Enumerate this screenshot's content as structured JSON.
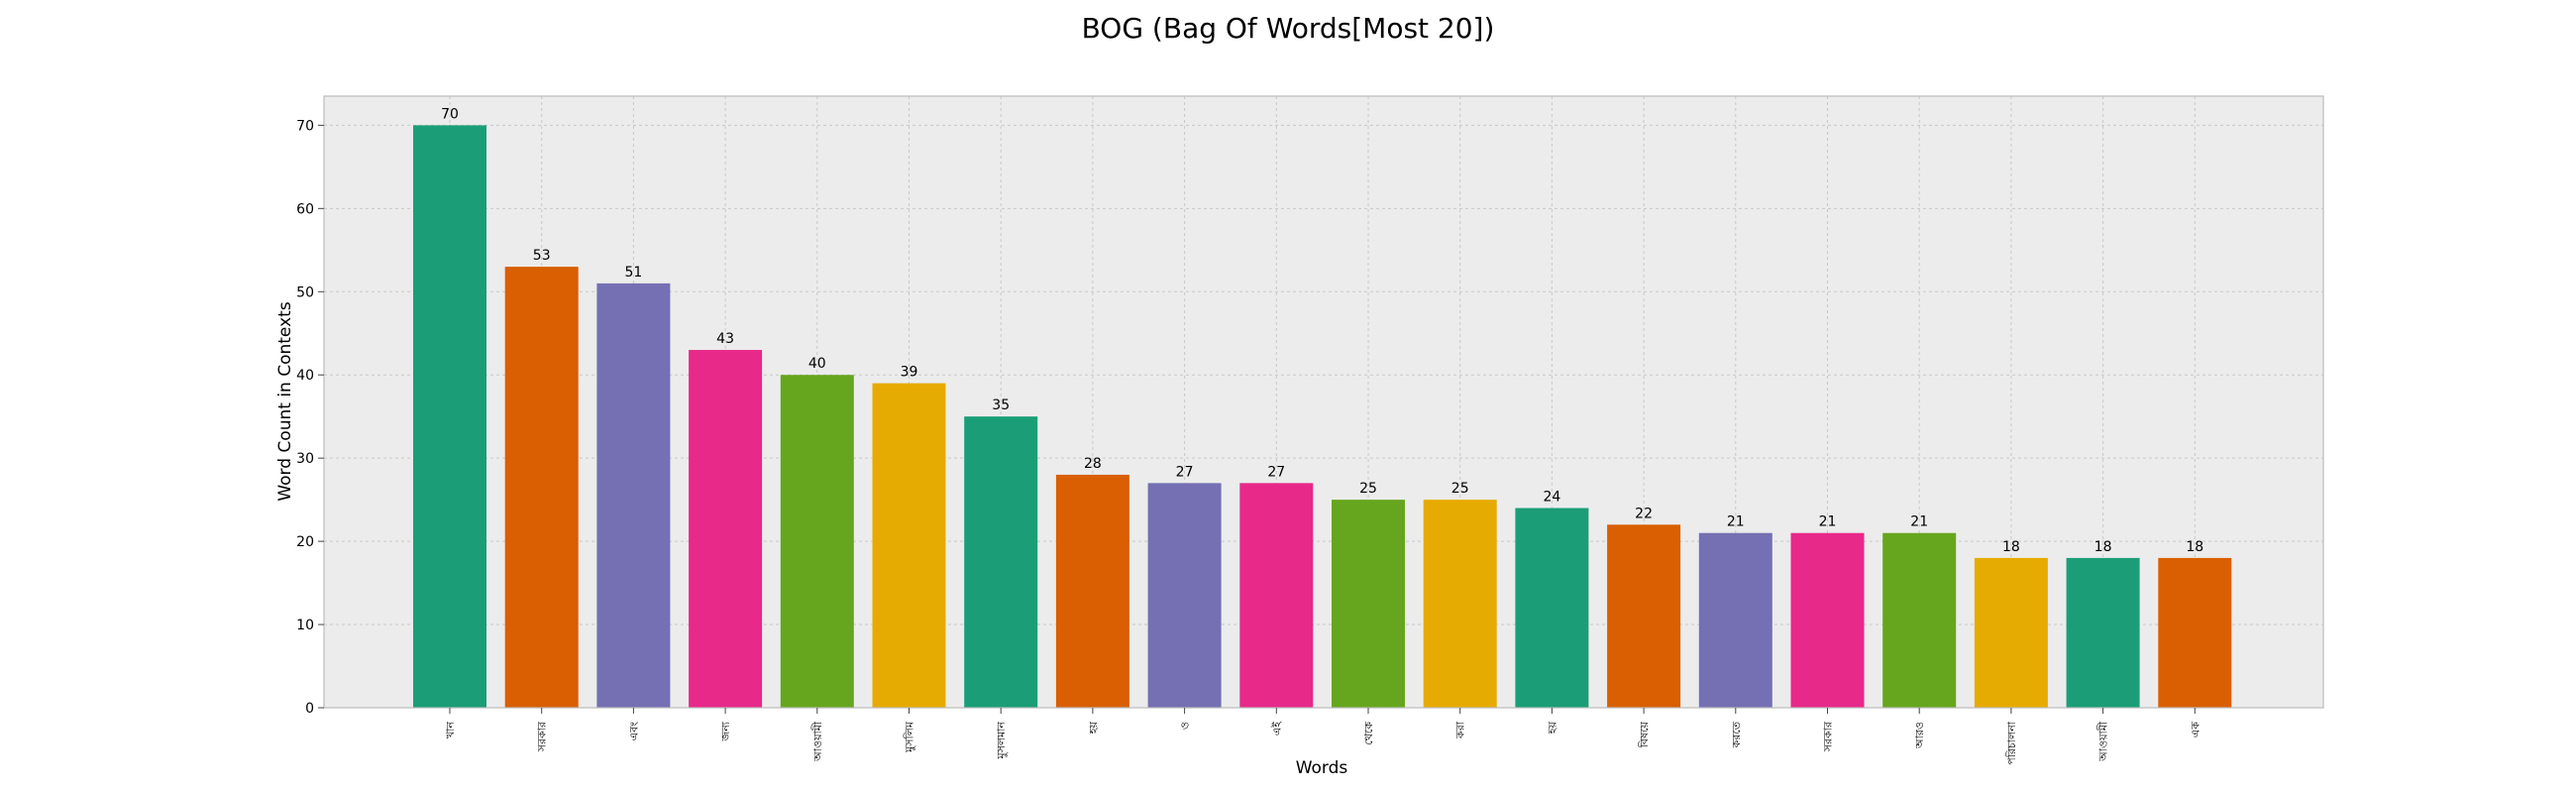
{
  "chart_data": {
    "type": "bar",
    "title": "BOG (Bag Of Words[Most 20])",
    "xlabel": "Words",
    "ylabel": "Word Count in Contexts",
    "categories": [
      "খান",
      "সরকার",
      "এবং",
      "জন্য",
      "আওয়ামী",
      "মুসলিম",
      "মুসলমান",
      "হয়",
      "ও",
      "এই",
      "থেকে",
      "করা",
      "হয়",
      "বিষয়ে",
      "করতে",
      "সরকার",
      "আরও",
      "পরিচালনা",
      "আওয়ামী",
      "এক"
    ],
    "values": [
      70,
      53,
      51,
      43,
      40,
      39,
      35,
      28,
      27,
      27,
      25,
      25,
      24,
      22,
      21,
      21,
      21,
      18,
      18,
      18
    ],
    "ylim": [
      0,
      73.5
    ],
    "yticks": [
      0,
      10,
      20,
      30,
      40,
      50,
      60,
      70
    ],
    "grid": true,
    "colors": [
      "#1b9e77",
      "#d95f02",
      "#7570b3",
      "#e7298a",
      "#66a61e",
      "#e6ab02"
    ],
    "background": "#ececec",
    "grid_color": "#c8c8c8",
    "frame_color": "#bcbcbc"
  }
}
